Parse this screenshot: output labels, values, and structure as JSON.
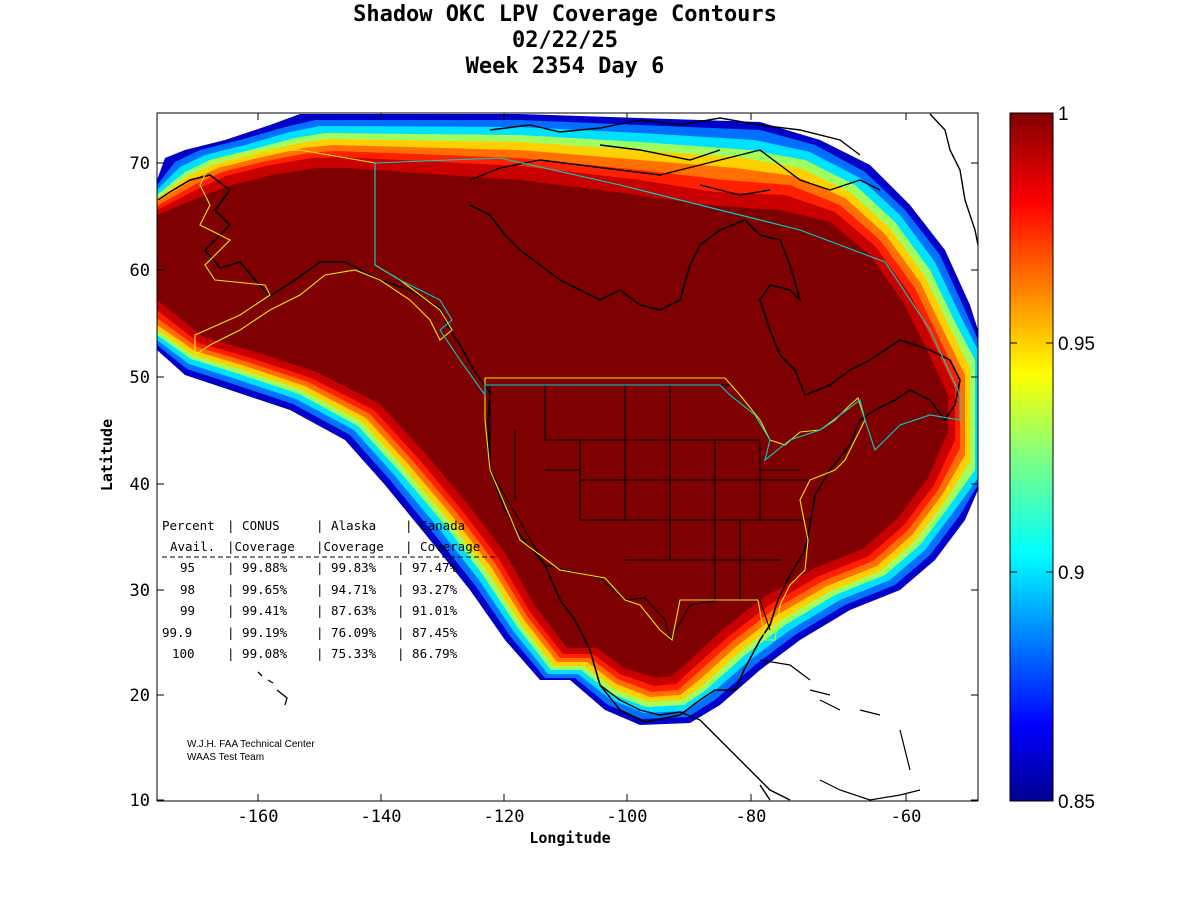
{
  "title": {
    "line1": "Shadow OKC LPV Coverage Contours",
    "line2": "02/22/25",
    "line3": "Week 2354 Day 6"
  },
  "axes": {
    "xlabel": "Longitude",
    "ylabel": "Latitude",
    "xticks": [
      "-160",
      "-140",
      "-120",
      "-100",
      "-80",
      "-60"
    ],
    "yticks": [
      "70",
      "60",
      "50",
      "40",
      "30",
      "20",
      "10"
    ]
  },
  "colorbar": {
    "ticks": [
      "1",
      "0.95",
      "0.9",
      "0.85"
    ]
  },
  "table": {
    "header1": [
      "Percent",
      "| CONUS",
      "| Alaska",
      "| Canada"
    ],
    "header2": [
      "Avail.",
      "|Coverage",
      "|Coverage",
      "| Coverage"
    ],
    "rows": [
      [
        "95",
        "| 99.88%",
        "| 99.83%",
        "| 97.47%"
      ],
      [
        "98",
        "| 99.65%",
        "| 94.71%",
        "| 93.27%"
      ],
      [
        "99",
        "| 99.41%",
        "| 87.63%",
        "| 91.01%"
      ],
      [
        "99.9",
        "| 99.19%",
        "| 76.09%",
        "| 87.45%"
      ],
      [
        "100",
        "| 99.08%",
        "| 75.33%",
        "| 86.79%"
      ]
    ]
  },
  "credit": {
    "line1": "W.J.H. FAA Technical Center",
    "line2": "WAAS Test Team"
  },
  "colors": {
    "dark_red": "#7f0000",
    "red": "#e00000",
    "orange": "#ff8000",
    "yellow": "#ffff00",
    "cyan": "#00ffff",
    "blue": "#0040ff",
    "dark_blue": "#000080",
    "boundary_yellow": "#ffff00",
    "boundary_cyan": "#00e0e0"
  }
}
